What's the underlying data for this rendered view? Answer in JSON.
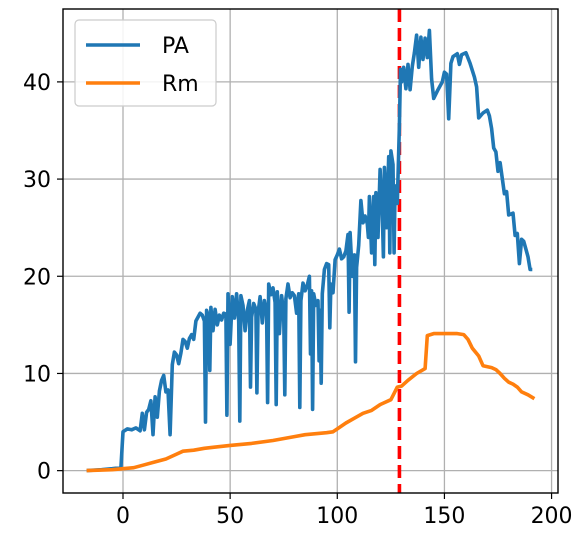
{
  "chart_data": {
    "type": "line",
    "title": "",
    "xlabel": "",
    "ylabel": "",
    "xlim": [
      -28,
      203
    ],
    "ylim": [
      -2.3,
      47.5
    ],
    "xticks": [
      0,
      50,
      100,
      150,
      200
    ],
    "yticks": [
      0,
      10,
      20,
      30,
      40
    ],
    "grid": true,
    "legend_position": "top-left",
    "vline": {
      "x": 129,
      "color": "#ff0000",
      "style": "dashed"
    },
    "series": [
      {
        "name": "PA",
        "color": "#1f77b4",
        "points": [
          [
            -17,
            0.0
          ],
          [
            -10,
            0.1
          ],
          [
            -5,
            0.2
          ],
          [
            -1,
            0.3
          ],
          [
            0,
            4.0
          ],
          [
            2,
            4.3
          ],
          [
            4,
            4.2
          ],
          [
            6,
            4.4
          ],
          [
            8,
            4.1
          ],
          [
            9,
            5.9
          ],
          [
            10,
            4.2
          ],
          [
            11,
            6.0
          ],
          [
            12,
            6.3
          ],
          [
            13,
            7.2
          ],
          [
            14,
            3.7
          ],
          [
            15,
            7.6
          ],
          [
            16,
            5.5
          ],
          [
            17,
            8.2
          ],
          [
            18,
            9.3
          ],
          [
            19,
            9.8
          ],
          [
            20,
            8.1
          ],
          [
            21,
            8.3
          ],
          [
            22,
            3.7
          ],
          [
            23,
            10.9
          ],
          [
            24,
            12.2
          ],
          [
            25,
            11.9
          ],
          [
            26,
            11.0
          ],
          [
            27,
            12.1
          ],
          [
            28,
            13.5
          ],
          [
            29,
            13.3
          ],
          [
            30,
            12.6
          ],
          [
            31,
            13.6
          ],
          [
            32,
            14.0
          ],
          [
            33,
            13.5
          ],
          [
            34,
            15.4
          ],
          [
            35,
            15.8
          ],
          [
            36,
            16.2
          ],
          [
            37,
            16.0
          ],
          [
            38,
            15.4
          ],
          [
            38.5,
            5.0
          ],
          [
            39,
            16.5
          ],
          [
            40,
            15.8
          ],
          [
            40.5,
            10.3
          ],
          [
            41,
            16.8
          ],
          [
            42,
            14.4
          ],
          [
            43,
            16.6
          ],
          [
            44,
            15.0
          ],
          [
            45,
            16.0
          ],
          [
            46,
            15.5
          ],
          [
            47,
            16.2
          ],
          [
            48,
            16.1
          ],
          [
            48.5,
            5.7
          ],
          [
            49,
            18.2
          ],
          [
            50,
            13.0
          ],
          [
            51,
            17.9
          ],
          [
            52,
            15.7
          ],
          [
            53,
            18.2
          ],
          [
            54,
            15.4
          ],
          [
            54.5,
            5.1
          ],
          [
            55,
            18.0
          ],
          [
            56,
            17.0
          ],
          [
            57,
            14.4
          ],
          [
            58,
            16.5
          ],
          [
            59,
            17.5
          ],
          [
            59.5,
            8.6
          ],
          [
            60,
            15.8
          ],
          [
            61,
            17.2
          ],
          [
            62,
            16.6
          ],
          [
            62.5,
            8.0
          ],
          [
            63,
            16.2
          ],
          [
            64,
            17.9
          ],
          [
            65,
            15.2
          ],
          [
            66,
            17.5
          ],
          [
            67,
            16.3
          ],
          [
            67.5,
            7.0
          ],
          [
            68,
            19.2
          ],
          [
            69,
            18.1
          ],
          [
            70,
            18.8
          ],
          [
            71,
            17.3
          ],
          [
            71.5,
            6.8
          ],
          [
            72,
            18.4
          ],
          [
            73,
            14.1
          ],
          [
            74,
            18.0
          ],
          [
            75,
            16.2
          ],
          [
            75.5,
            7.8
          ],
          [
            76,
            17.7
          ],
          [
            77,
            19.2
          ],
          [
            78,
            17.8
          ],
          [
            79,
            18.3
          ],
          [
            80,
            18.0
          ],
          [
            81,
            16.2
          ],
          [
            82,
            18.2
          ],
          [
            82.5,
            6.5
          ],
          [
            83,
            17.5
          ],
          [
            84,
            19.3
          ],
          [
            85,
            18.5
          ],
          [
            86,
            19.1
          ],
          [
            87,
            20.0
          ],
          [
            87.5,
            12.0
          ],
          [
            88,
            18.5
          ],
          [
            88.5,
            6.3
          ],
          [
            89,
            18.2
          ],
          [
            90,
            17.0
          ],
          [
            91,
            17.5
          ],
          [
            91.5,
            11.3
          ],
          [
            92,
            16.5
          ],
          [
            92.5,
            9.0
          ],
          [
            93,
            18.2
          ],
          [
            94,
            20.7
          ],
          [
            95,
            21.3
          ],
          [
            96,
            21.2
          ],
          [
            96.5,
            14.7
          ],
          [
            97,
            19.2
          ],
          [
            98,
            18.3
          ],
          [
            99,
            21.7
          ],
          [
            100,
            22.2
          ],
          [
            101,
            22.8
          ],
          [
            102,
            21.8
          ],
          [
            103,
            22.0
          ],
          [
            104,
            22.6
          ],
          [
            105,
            24.3
          ],
          [
            105.5,
            16.3
          ],
          [
            106,
            24.5
          ],
          [
            107,
            20.0
          ],
          [
            108,
            22.2
          ],
          [
            108.5,
            11.2
          ],
          [
            109,
            20.9
          ],
          [
            110,
            23.2
          ],
          [
            111,
            27.8
          ],
          [
            112,
            25.5
          ],
          [
            113,
            26.2
          ],
          [
            114,
            25.4
          ],
          [
            114.5,
            24.0
          ],
          [
            115,
            28.2
          ],
          [
            116,
            22.4
          ],
          [
            117,
            28.2
          ],
          [
            117.5,
            21.2
          ],
          [
            118,
            28.6
          ],
          [
            119,
            24.0
          ],
          [
            120,
            31.0
          ],
          [
            121,
            26.5
          ],
          [
            121.5,
            22.0
          ],
          [
            122,
            31.2
          ],
          [
            123,
            25.0
          ],
          [
            124,
            32.3
          ],
          [
            124.5,
            22.4
          ],
          [
            125,
            32.9
          ],
          [
            126,
            31.5
          ],
          [
            126.5,
            22.4
          ],
          [
            127,
            29.3
          ],
          [
            128,
            27.5
          ],
          [
            129,
            35.5
          ],
          [
            129.5,
            41.3
          ],
          [
            130,
            40.0
          ],
          [
            131,
            41.5
          ],
          [
            132,
            39.3
          ],
          [
            133,
            41.8
          ],
          [
            134,
            39.2
          ],
          [
            135,
            41.6
          ],
          [
            136,
            43.0
          ],
          [
            137,
            44.8
          ],
          [
            138,
            41.5
          ],
          [
            139,
            44.6
          ],
          [
            140,
            42.3
          ],
          [
            141,
            44.5
          ],
          [
            142,
            42.5
          ],
          [
            143,
            45.3
          ],
          [
            144,
            40.3
          ],
          [
            145,
            38.3
          ],
          [
            147,
            39.2
          ],
          [
            149,
            40.0
          ],
          [
            150,
            41.0
          ],
          [
            151,
            40.8
          ],
          [
            152,
            36.2
          ],
          [
            153,
            41.9
          ],
          [
            154,
            42.6
          ],
          [
            156,
            42.9
          ],
          [
            157,
            41.8
          ],
          [
            158,
            42.8
          ],
          [
            160,
            43.0
          ],
          [
            162,
            41.9
          ],
          [
            164,
            40.5
          ],
          [
            165,
            39.5
          ],
          [
            166,
            36.3
          ],
          [
            168,
            36.8
          ],
          [
            170,
            37.1
          ],
          [
            171,
            36.5
          ],
          [
            172,
            35.2
          ],
          [
            173,
            33.2
          ],
          [
            174,
            32.8
          ],
          [
            175,
            30.8
          ],
          [
            176,
            31.7
          ],
          [
            178,
            28.5
          ],
          [
            179,
            28.7
          ],
          [
            180,
            26.3
          ],
          [
            182,
            26.5
          ],
          [
            183,
            24.2
          ],
          [
            184,
            24.4
          ],
          [
            185,
            21.3
          ],
          [
            186,
            23.8
          ],
          [
            187,
            23.6
          ],
          [
            188,
            22.8
          ],
          [
            189,
            22.0
          ],
          [
            190,
            20.7
          ],
          [
            191,
            20.7
          ]
        ]
      },
      {
        "name": "Rm",
        "color": "#ff7f0e",
        "points": [
          [
            -17,
            0.0
          ],
          [
            -5,
            0.1
          ],
          [
            0,
            0.2
          ],
          [
            5,
            0.3
          ],
          [
            10,
            0.6
          ],
          [
            15,
            0.9
          ],
          [
            20,
            1.2
          ],
          [
            25,
            1.7
          ],
          [
            28,
            2.0
          ],
          [
            33,
            2.1
          ],
          [
            38,
            2.3
          ],
          [
            42,
            2.4
          ],
          [
            50,
            2.6
          ],
          [
            60,
            2.8
          ],
          [
            70,
            3.1
          ],
          [
            80,
            3.5
          ],
          [
            85,
            3.7
          ],
          [
            95,
            3.9
          ],
          [
            98,
            4.0
          ],
          [
            100,
            4.3
          ],
          [
            104,
            4.9
          ],
          [
            108,
            5.4
          ],
          [
            112,
            5.9
          ],
          [
            116,
            6.2
          ],
          [
            120,
            6.8
          ],
          [
            125,
            7.3
          ],
          [
            128,
            8.6
          ],
          [
            130,
            8.7
          ],
          [
            133,
            9.3
          ],
          [
            137,
            10.0
          ],
          [
            141,
            10.5
          ],
          [
            142,
            13.9
          ],
          [
            145,
            14.1
          ],
          [
            150,
            14.1
          ],
          [
            156,
            14.1
          ],
          [
            159,
            14.0
          ],
          [
            161,
            13.5
          ],
          [
            163,
            12.6
          ],
          [
            166,
            11.8
          ],
          [
            168,
            10.8
          ],
          [
            172,
            10.6
          ],
          [
            174,
            10.4
          ],
          [
            176,
            10.0
          ],
          [
            178,
            9.5
          ],
          [
            180,
            9.1
          ],
          [
            182,
            8.9
          ],
          [
            184,
            8.6
          ],
          [
            186,
            8.1
          ],
          [
            189,
            7.8
          ],
          [
            192,
            7.4
          ]
        ]
      }
    ]
  }
}
